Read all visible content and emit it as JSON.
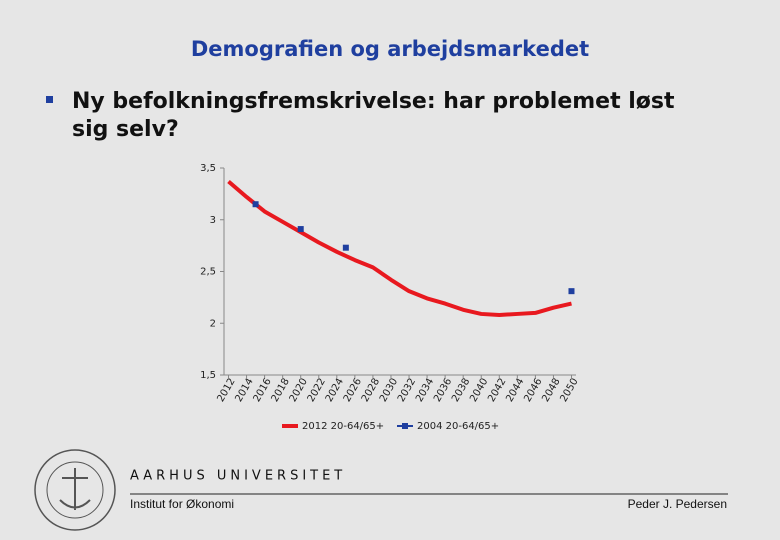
{
  "title": "Demografien og arbejdsmarkedet",
  "bullet": "Ny befolkningsfremskrivelse: har problemet løst sig selv?",
  "chart_data": {
    "type": "line",
    "xlim": [
      2011.5,
      2050.5
    ],
    "xticks": [
      2012,
      2014,
      2016,
      2018,
      2020,
      2022,
      2024,
      2026,
      2028,
      2030,
      2032,
      2034,
      2036,
      2038,
      2040,
      2042,
      2044,
      2046,
      2048,
      2050
    ],
    "ylim": [
      1.5,
      3.5
    ],
    "yticks": [
      {
        "value": 1.5,
        "label": "1,5"
      },
      2,
      {
        "value": 2.5,
        "label": "2,5"
      },
      3,
      {
        "value": 3.5,
        "label": "3,5"
      }
    ],
    "series": [
      {
        "name": "2012 20-64/65+",
        "color": "#e8191f",
        "style": "line",
        "x": [
          2012,
          2014,
          2016,
          2018,
          2020,
          2022,
          2024,
          2026,
          2028,
          2030,
          2032,
          2034,
          2036,
          2038,
          2040,
          2042,
          2044,
          2046,
          2048,
          2050
        ],
        "values": [
          3.37,
          3.22,
          3.08,
          2.98,
          2.88,
          2.78,
          2.69,
          2.61,
          2.54,
          2.42,
          2.31,
          2.24,
          2.19,
          2.13,
          2.09,
          2.08,
          2.09,
          2.1,
          2.15,
          2.19
        ]
      },
      {
        "name": "2004 20-64/65+",
        "color": "#1f3f9f",
        "style": "markers",
        "x": [
          2015,
          2020,
          2025,
          2050
        ],
        "values": [
          3.15,
          2.91,
          2.73,
          2.31
        ]
      }
    ]
  },
  "footer": {
    "university": "AARHUS UNIVERSITET",
    "institute": "Institut for Økonomi",
    "author": "Peder J. Pedersen"
  }
}
